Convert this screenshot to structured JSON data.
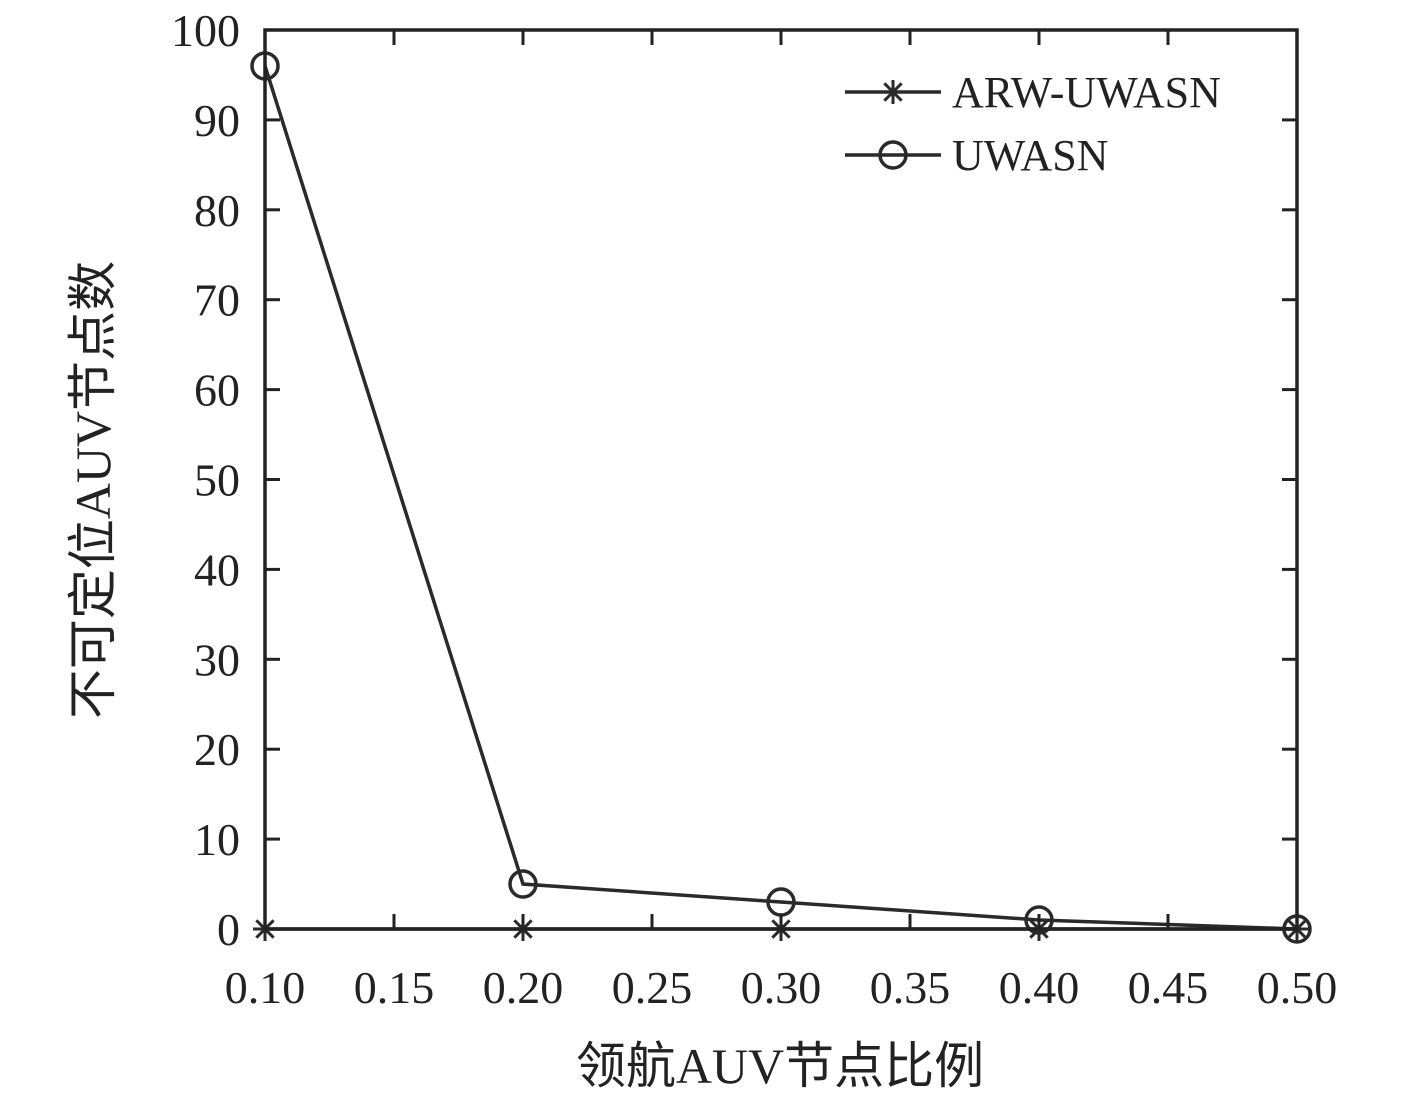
{
  "chart_data": {
    "type": "line",
    "title": "",
    "xlabel": "领航AUV节点比例",
    "ylabel": "不可定位AUV节点数",
    "xlim": [
      0.1,
      0.5
    ],
    "ylim": [
      0,
      100
    ],
    "xticks": [
      0.1,
      0.15,
      0.2,
      0.25,
      0.3,
      0.35,
      0.4,
      0.45,
      0.5
    ],
    "xtick_labels": [
      "0.10",
      "0.15",
      "0.20",
      "0.25",
      "0.30",
      "0.35",
      "0.40",
      "0.45",
      "0.50"
    ],
    "yticks": [
      0,
      10,
      20,
      30,
      40,
      50,
      60,
      70,
      80,
      90,
      100
    ],
    "ytick_labels": [
      "0",
      "10",
      "20",
      "30",
      "40",
      "50",
      "60",
      "70",
      "80",
      "90",
      "100"
    ],
    "grid": false,
    "legend_position": "top-right",
    "series": [
      {
        "name": "ARW-UWASN",
        "marker": "asterisk",
        "x": [
          0.1,
          0.2,
          0.3,
          0.4,
          0.5
        ],
        "y": [
          0,
          0,
          0,
          0,
          0
        ]
      },
      {
        "name": "UWASN",
        "marker": "circle",
        "x": [
          0.1,
          0.2,
          0.3,
          0.4,
          0.5
        ],
        "y": [
          96,
          5,
          3,
          1,
          0
        ]
      }
    ],
    "colors": {
      "line": "#2a2a2a",
      "axis": "#222222"
    }
  }
}
